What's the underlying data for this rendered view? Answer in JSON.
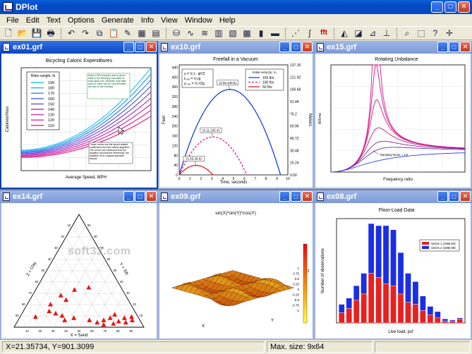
{
  "app": {
    "title": "DPlot",
    "controls": {
      "minimize": "_",
      "maximize": "□",
      "close": "✕"
    }
  },
  "menu": [
    "File",
    "Edit",
    "Text",
    "Options",
    "Generate",
    "Info",
    "View",
    "Window",
    "Help"
  ],
  "toolbar": [
    {
      "name": "new-file-icon",
      "glyph": "🗋"
    },
    {
      "name": "open-folder-icon",
      "glyph": "📂"
    },
    {
      "name": "save-icon",
      "glyph": "💾"
    },
    {
      "name": "print-icon",
      "glyph": "🖶"
    },
    {
      "sep": true
    },
    {
      "name": "undo-icon",
      "glyph": "↶"
    },
    {
      "name": "redo-icon",
      "glyph": "↷"
    },
    {
      "name": "copy-icon",
      "glyph": "⧉"
    },
    {
      "name": "paste-icon",
      "glyph": "📋"
    },
    {
      "name": "highlight-icon",
      "glyph": "✎"
    },
    {
      "name": "edit-data-icon",
      "glyph": "▦"
    },
    {
      "name": "table-icon",
      "glyph": "▤"
    },
    {
      "sep": true
    },
    {
      "name": "bucket-icon",
      "glyph": "⛁"
    },
    {
      "name": "curve-fit-icon",
      "glyph": "∿"
    },
    {
      "name": "color-curves-icon",
      "glyph": "≋"
    },
    {
      "name": "grid-lines-icon",
      "glyph": "▥"
    },
    {
      "name": "log-grid-icon",
      "glyph": "▧"
    },
    {
      "name": "contour-icon",
      "glyph": "▩"
    },
    {
      "name": "bar-series-icon",
      "glyph": "▮"
    },
    {
      "name": "color-bars-icon",
      "glyph": "▬"
    },
    {
      "sep": true
    },
    {
      "name": "scatter-line-icon",
      "glyph": "⋰"
    },
    {
      "name": "integral-icon",
      "glyph": "∫"
    },
    {
      "name": "fft-icon",
      "glyph": "fft"
    },
    {
      "sep": true
    },
    {
      "name": "surface-plot-icon",
      "glyph": "◭"
    },
    {
      "name": "zoom-plot-icon",
      "glyph": "◪"
    },
    {
      "name": "axis-plot-icon",
      "glyph": "⊿"
    },
    {
      "name": "axis-arrows-icon",
      "glyph": "⊥"
    },
    {
      "sep": true
    },
    {
      "name": "magnifier-icon",
      "glyph": "⌕"
    },
    {
      "name": "zoom-box-icon",
      "glyph": "⬚"
    },
    {
      "name": "help-pointer-icon",
      "glyph": "?"
    },
    {
      "name": "crosshair-icon",
      "glyph": "✛"
    }
  ],
  "windows": [
    {
      "id": "ex01",
      "title": "ex01.grf",
      "chart_data": {
        "type": "line",
        "title": "Bicycling Caloric Expenditures",
        "xlabel": "Average Speed, MPH",
        "ylabel": "Calories/Hour",
        "x": [
          5,
          10,
          15,
          20,
          25,
          30
        ],
        "legend_title": "Rider weight, lb",
        "series": [
          {
            "name": "190",
            "color": "#29c9f0"
          },
          {
            "name": "180",
            "color": "#2aa6ee"
          },
          {
            "name": "170",
            "color": "#3a7fe8"
          },
          {
            "name": "160",
            "color": "#5560e0"
          },
          {
            "name": "150",
            "color": "#7a48d8"
          },
          {
            "name": "140",
            "color": "#a53ac8"
          },
          {
            "name": "130",
            "color": "#c832b4"
          },
          {
            "name": "120",
            "color": "#de2a98"
          },
          {
            "name": "110",
            "color": "#ee2080"
          }
        ],
        "note_top": "Data is DPlot-Applied data in green table to the Bicycling Calculator at www.dplot.com. Multiplier data table used to check the box and identifies the user to the example.",
        "note_bottom": "These curves use the speed-related coefficients from the calorie algorithm. The curves are measured from the equation and with the references, the equation is for a typical standard bicycle."
      }
    },
    {
      "id": "ex10",
      "title": "ex10.grf",
      "chart_data": {
        "type": "line",
        "title": "Freefall in a Vacuum",
        "xlabel": "Time, seconds",
        "ylabel": "Feet",
        "ylabel_right": "Meters",
        "xlim": [
          0,
          10
        ],
        "ylim": [
          0,
          450
        ],
        "x_ticks": [
          "0",
          "1",
          "2",
          "3",
          "4",
          "5",
          "6",
          "7",
          "8",
          "9",
          "10"
        ],
        "y_ticks": [
          "0",
          "40",
          "80",
          "120",
          "160",
          "200",
          "240",
          "280",
          "320",
          "360",
          "400",
          "440"
        ],
        "y_right_ticks": [
          "0.00",
          "15.24",
          "30.48",
          "45.72",
          "60.96",
          "76.2",
          "91.44",
          "106.68",
          "121.92",
          "137.16"
        ],
        "equations": [
          "y = V₀t - gt²/2",
          "tₘₐₓ = V₀/g",
          "yₘₐₓ = V₀²/2g"
        ],
        "legend_title": "Initial velocity, V₀",
        "series": [
          {
            "name": "150 ft/s",
            "color": "#1f3fe0",
            "v0": 150
          },
          {
            "name": "100 ft/s",
            "color": "#e0208c",
            "v0": 100
          },
          {
            "name": "50 ft/s",
            "color": "#e02020",
            "v0": 50
          }
        ],
        "peak_labels": [
          "(4.66,349.6)",
          "(3.11,155.4)",
          "(1.55,38.9)"
        ]
      }
    },
    {
      "id": "ex15",
      "title": "ex15.grf",
      "chart_data": {
        "type": "line",
        "title": "Rotating Unbalance",
        "xlabel": "Frequency ratio",
        "ylabel": "MX/me",
        "xlim": [
          0,
          3
        ],
        "ylim": [
          0,
          5
        ],
        "damping_ratios": [
          0.05,
          0.1,
          0.15,
          0.25,
          0.375,
          0.5,
          1.0
        ],
        "annotation": "Damping factor = 1.0"
      }
    },
    {
      "id": "ex14",
      "title": "ex14.grf",
      "chart_data": {
        "type": "scatter",
        "subtype": "ternary",
        "axis_labels": {
          "bottom": "X = Sand",
          "left": "Z = Clay",
          "right": "Y = Silt"
        },
        "ticks": [
          "10",
          "20",
          "30",
          "40",
          "50",
          "60",
          "70",
          "80",
          "90"
        ],
        "points": [
          [
            0.4,
            0.35
          ],
          [
            0.3,
            0.33
          ],
          [
            0.22,
            0.28
          ],
          [
            0.28,
            0.24
          ],
          [
            0.18,
            0.2
          ],
          [
            0.2,
            0.14
          ],
          [
            0.26,
            0.12
          ],
          [
            0.32,
            0.1
          ],
          [
            0.12,
            0.09
          ],
          [
            0.36,
            0.06
          ],
          [
            0.42,
            0.08
          ],
          [
            0.55,
            0.06
          ],
          [
            0.62,
            0.04
          ],
          [
            0.66,
            0.06
          ],
          [
            0.68,
            0.02
          ],
          [
            0.7,
            0.08
          ],
          [
            0.72,
            0.11
          ],
          [
            0.75,
            0.03
          ],
          [
            0.78,
            0.05
          ],
          [
            0.81,
            0.08
          ],
          [
            0.84,
            0.04
          ],
          [
            0.86,
            0.09
          ],
          [
            0.88,
            0.06
          ]
        ],
        "marker_color": "#e81414"
      }
    },
    {
      "id": "ex09",
      "title": "ex09.grf",
      "chart_data": {
        "type": "surface",
        "title": "sin(X)*sin(Y)*cos(Y)",
        "xlabel": "X",
        "ylabel": "Y",
        "zlabel": "Z",
        "colorbar": [
          "1",
          "0.75",
          "0.5",
          "0.25",
          "0",
          "-0.25",
          "-0.5",
          "-0.75",
          "-1"
        ]
      }
    },
    {
      "id": "ex08",
      "title": "ex08.grf",
      "chart_data": {
        "type": "bar",
        "stacked": true,
        "title": "Floor-Load Data",
        "xlabel": "Live load, psf",
        "ylabel": "Number of observations",
        "series": [
          {
            "name": "Series 1 (1960-64)",
            "color": "#e82020",
            "values": [
              10,
              14,
              22,
              28,
              48,
              44,
              38,
              36,
              28,
              20,
              18,
              12,
              8,
              5,
              2,
              2,
              4
            ]
          },
          {
            "name": "Series 2 (1965-69)",
            "color": "#1a2ee6",
            "values": [
              8,
              10,
              14,
              20,
              48,
              50,
              56,
              54,
              40,
              28,
              22,
              14,
              8,
              6,
              2,
              1,
              1
            ]
          }
        ]
      }
    }
  ],
  "watermark": "soft32.com",
  "status": {
    "coords": "X=21.35734, Y=901.3099",
    "max_size": "Max. size: 9x64",
    "extra": ""
  }
}
